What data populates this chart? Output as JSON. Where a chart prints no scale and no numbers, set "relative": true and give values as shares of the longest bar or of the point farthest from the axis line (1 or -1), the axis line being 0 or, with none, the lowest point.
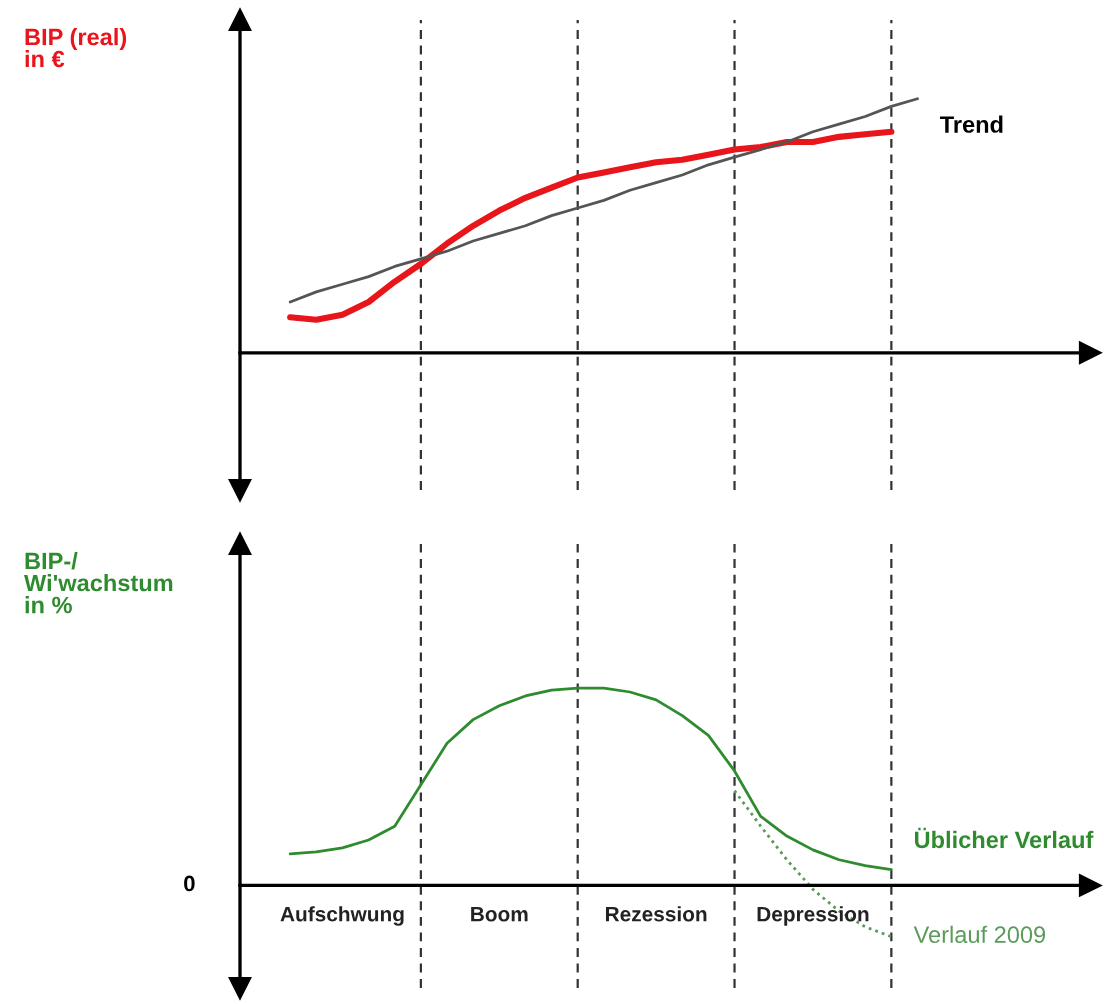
{
  "chart_data": [
    {
      "type": "line",
      "ylabel": "BIP (real)\nin €",
      "relative": true,
      "grid": "x",
      "legend": false,
      "categories": [
        null,
        null,
        null,
        null,
        null,
        null,
        null,
        null,
        null,
        null,
        null,
        null,
        null,
        null,
        null,
        null,
        null,
        null,
        null,
        null,
        null,
        null,
        null,
        null,
        null
      ],
      "series": [
        {
          "color": "#e8151b",
          "line_style": "solid",
          "values": [
            0.14,
            0.13,
            0.15,
            0.2,
            0.28,
            0.35,
            0.43,
            0.5,
            0.56,
            0.61,
            0.65,
            0.69,
            0.71,
            0.73,
            0.75,
            0.76,
            0.78,
            0.8,
            0.81,
            0.83,
            0.83,
            0.85,
            0.86,
            0.87,
            null
          ]
        },
        {
          "name": "Trend",
          "color": "#555555",
          "line_style": "solid",
          "values": [
            0.2,
            0.24,
            0.27,
            0.3,
            0.34,
            0.37,
            0.4,
            0.44,
            0.47,
            0.5,
            0.54,
            0.57,
            0.6,
            0.64,
            0.67,
            0.7,
            0.74,
            0.77,
            0.8,
            0.83,
            0.87,
            0.9,
            0.93,
            0.97,
            1.0
          ]
        }
      ]
    },
    {
      "type": "line",
      "ylabel": "BIP-/\nWi'wachstum\nin %",
      "relative": true,
      "grid": "x",
      "legend": false,
      "categories": [
        null,
        null,
        null,
        null,
        null,
        null,
        null,
        null,
        null,
        null,
        null,
        null,
        null,
        null,
        null,
        null,
        null,
        null,
        null,
        null,
        null,
        null,
        null,
        null,
        null
      ],
      "series": [
        {
          "name": "Üblicher Verlauf",
          "color": "#2e8b2e",
          "line_style": "solid",
          "values": [
            0.16,
            0.17,
            0.19,
            0.23,
            0.3,
            0.51,
            0.72,
            0.84,
            0.91,
            0.96,
            0.99,
            1.0,
            1.0,
            0.98,
            0.94,
            0.86,
            0.76,
            0.58,
            0.35,
            0.25,
            0.18,
            0.13,
            0.1,
            0.08,
            null
          ]
        },
        {
          "name": "Verlauf 2009",
          "color": "#5a9a5a",
          "line_style": "dotted",
          "values": [
            null,
            null,
            null,
            null,
            null,
            null,
            null,
            null,
            null,
            null,
            null,
            null,
            null,
            null,
            null,
            null,
            null,
            0.48,
            0.3,
            0.13,
            -0.02,
            -0.13,
            -0.21,
            -0.26,
            null
          ]
        }
      ],
      "annotations": [
        "0",
        "Aufschwung",
        "Boom",
        "Rezession",
        "Depression"
      ]
    }
  ]
}
